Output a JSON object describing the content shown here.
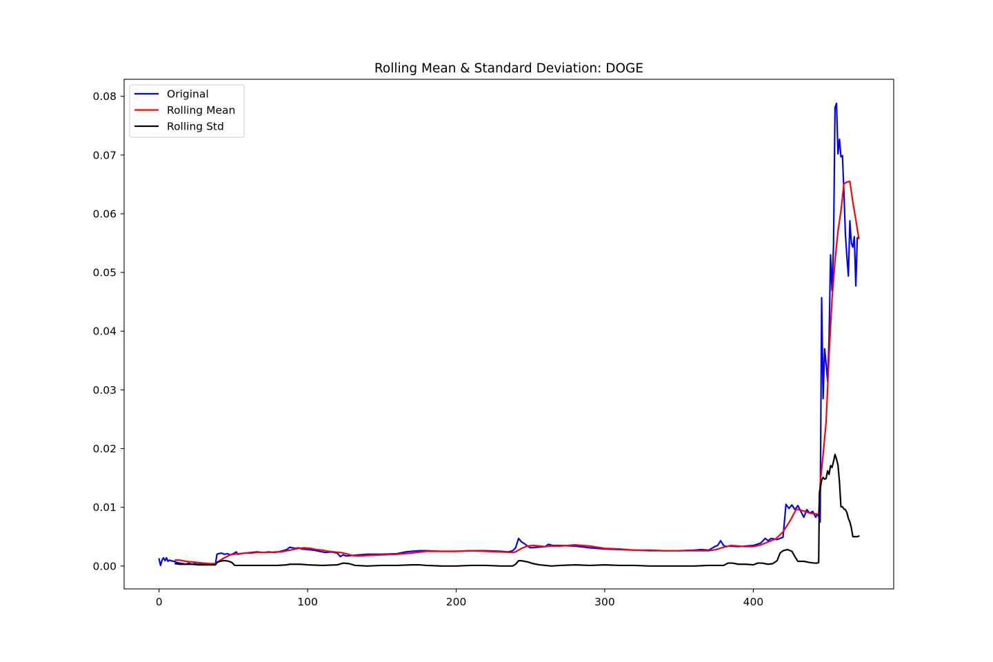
{
  "chart_data": {
    "type": "line",
    "title": "Rolling Mean & Standard Deviation:  DOGE",
    "xlabel": "",
    "ylabel": "",
    "xlim": [
      -23.5,
      494.5
    ],
    "ylim": [
      -0.0039,
      0.0829
    ],
    "xticks": [
      0,
      100,
      200,
      300,
      400
    ],
    "yticks": [
      0.0,
      0.01,
      0.02,
      0.03,
      0.04,
      0.05,
      0.06,
      0.07,
      0.08
    ],
    "ytick_labels": [
      "0.00",
      "0.01",
      "0.02",
      "0.03",
      "0.04",
      "0.05",
      "0.06",
      "0.07",
      "0.08"
    ],
    "grid": false,
    "legend_position": "upper-left",
    "series": [
      {
        "name": "Original",
        "color": "#0000ff",
        "x": [
          0,
          1,
          2,
          3,
          4,
          5,
          6,
          7,
          8,
          10,
          12,
          14,
          16,
          18,
          20,
          22,
          24,
          26,
          28,
          30,
          32,
          34,
          36,
          38,
          39,
          40,
          42,
          44,
          46,
          48,
          50,
          52,
          53,
          55,
          58,
          62,
          66,
          70,
          74,
          78,
          82,
          86,
          88,
          90,
          92,
          94,
          96,
          100,
          104,
          108,
          112,
          116,
          120,
          122,
          124,
          126,
          130,
          135,
          140,
          150,
          160,
          166,
          170,
          175,
          180,
          190,
          200,
          210,
          220,
          230,
          235,
          238,
          240,
          242,
          244,
          246,
          248,
          250,
          255,
          260,
          262,
          265,
          270,
          280,
          290,
          300,
          310,
          320,
          330,
          340,
          350,
          360,
          365,
          370,
          374,
          376,
          378,
          380,
          382,
          384,
          390,
          400,
          405,
          408,
          410,
          412,
          414,
          416,
          418,
          420,
          422,
          424,
          426,
          428,
          430,
          432,
          434,
          436,
          438,
          440,
          442,
          443,
          444,
          445,
          446,
          447,
          448,
          449,
          450,
          451,
          452,
          453,
          454,
          455,
          456,
          457,
          458,
          459,
          460,
          461,
          462,
          463,
          464,
          465,
          466,
          467,
          468,
          469,
          470,
          471
        ],
        "values": [
          0.0012,
          0.0001,
          0.001,
          0.0014,
          0.0009,
          0.0014,
          0.0008,
          0.001,
          0.0009,
          0.0008,
          0.0006,
          0.0005,
          0.0004,
          0.0003,
          0.0005,
          0.0003,
          0.0004,
          0.0003,
          0.0003,
          0.0004,
          0.0003,
          0.0004,
          0.0002,
          0.0004,
          0.002,
          0.0021,
          0.0022,
          0.002,
          0.0021,
          0.0019,
          0.0021,
          0.0024,
          0.002,
          0.0021,
          0.0022,
          0.0023,
          0.0024,
          0.0023,
          0.0024,
          0.0023,
          0.0025,
          0.0028,
          0.0032,
          0.0031,
          0.003,
          0.0031,
          0.0029,
          0.0028,
          0.0027,
          0.0025,
          0.0023,
          0.0024,
          0.0022,
          0.0016,
          0.0019,
          0.0017,
          0.0018,
          0.0019,
          0.002,
          0.002,
          0.0021,
          0.0024,
          0.0025,
          0.0026,
          0.0026,
          0.0025,
          0.0025,
          0.0026,
          0.0026,
          0.0025,
          0.0024,
          0.0026,
          0.0031,
          0.0047,
          0.0041,
          0.0038,
          0.0034,
          0.0031,
          0.0032,
          0.0033,
          0.0037,
          0.0035,
          0.0035,
          0.0034,
          0.0031,
          0.0029,
          0.0028,
          0.0027,
          0.0027,
          0.0026,
          0.0026,
          0.0027,
          0.0028,
          0.0027,
          0.0033,
          0.0035,
          0.0043,
          0.0035,
          0.0033,
          0.0034,
          0.0033,
          0.0035,
          0.0039,
          0.0047,
          0.0043,
          0.0047,
          0.0046,
          0.0045,
          0.0047,
          0.0049,
          0.0105,
          0.0098,
          0.0104,
          0.0096,
          0.0103,
          0.0093,
          0.0083,
          0.0096,
          0.009,
          0.0093,
          0.0083,
          0.0088,
          0.0085,
          0.0075,
          0.0457,
          0.0285,
          0.037,
          0.0345,
          0.0315,
          0.0387,
          0.053,
          0.0469,
          0.0547,
          0.0781,
          0.0788,
          0.0702,
          0.0727,
          0.0697,
          0.0699,
          0.0637,
          0.0565,
          0.0526,
          0.0494,
          0.0588,
          0.055,
          0.0543,
          0.0561,
          0.0477,
          0.0559,
          0.0559
        ],
        "note_bind": "legend.original"
      },
      {
        "name": "Rolling Mean",
        "color": "#ff0000",
        "x": [
          11,
          14,
          18,
          22,
          26,
          30,
          34,
          38,
          40,
          44,
          48,
          50,
          54,
          58,
          62,
          66,
          70,
          74,
          78,
          82,
          86,
          90,
          94,
          98,
          102,
          106,
          110,
          114,
          118,
          122,
          126,
          130,
          134,
          140,
          150,
          160,
          170,
          180,
          190,
          200,
          210,
          220,
          230,
          238,
          240,
          244,
          248,
          252,
          256,
          260,
          264,
          270,
          280,
          290,
          300,
          310,
          320,
          330,
          340,
          350,
          360,
          370,
          375,
          380,
          385,
          390,
          395,
          400,
          405,
          410,
          415,
          420,
          425,
          429,
          432,
          435,
          438,
          441,
          444,
          445,
          447,
          449,
          451,
          453,
          455,
          457,
          459,
          461,
          463,
          465,
          467,
          469,
          471
        ],
        "values": [
          0.001,
          0.001,
          0.0008,
          0.0007,
          0.0006,
          0.0005,
          0.0004,
          0.0004,
          0.0008,
          0.0014,
          0.0019,
          0.002,
          0.0021,
          0.0022,
          0.0022,
          0.0023,
          0.0023,
          0.0023,
          0.0024,
          0.0024,
          0.0026,
          0.0028,
          0.003,
          0.0031,
          0.003,
          0.0028,
          0.0027,
          0.0025,
          0.0024,
          0.0023,
          0.0021,
          0.0018,
          0.0017,
          0.0018,
          0.0019,
          0.002,
          0.0022,
          0.0025,
          0.0025,
          0.0025,
          0.0026,
          0.0025,
          0.0024,
          0.0023,
          0.0024,
          0.003,
          0.0034,
          0.0035,
          0.0034,
          0.0033,
          0.0034,
          0.0034,
          0.0036,
          0.0034,
          0.003,
          0.0029,
          0.0027,
          0.0026,
          0.0026,
          0.0026,
          0.0026,
          0.0026,
          0.0028,
          0.0032,
          0.0035,
          0.0034,
          0.0033,
          0.0033,
          0.0036,
          0.0041,
          0.0046,
          0.0058,
          0.0078,
          0.0097,
          0.0095,
          0.0093,
          0.009,
          0.0089,
          0.0088,
          0.014,
          0.019,
          0.0245,
          0.036,
          0.0455,
          0.052,
          0.057,
          0.0605,
          0.0651,
          0.0654,
          0.0655,
          0.062,
          0.059,
          0.0558
        ]
      },
      {
        "name": "Rolling Std",
        "color": "#000000",
        "x": [
          11,
          14,
          18,
          22,
          26,
          30,
          34,
          38,
          39,
          41,
          43,
          45,
          47,
          49,
          51,
          55,
          60,
          70,
          80,
          86,
          88,
          90,
          95,
          100,
          110,
          120,
          124,
          128,
          132,
          140,
          150,
          160,
          170,
          175,
          180,
          190,
          200,
          210,
          220,
          230,
          238,
          240,
          242,
          244,
          248,
          252,
          256,
          260,
          264,
          270,
          280,
          290,
          300,
          310,
          320,
          330,
          340,
          350,
          360,
          370,
          375,
          380,
          383,
          386,
          390,
          395,
          400,
          403,
          406,
          410,
          413,
          416,
          418,
          420,
          423,
          426,
          428,
          430,
          434,
          438,
          441,
          443,
          444,
          444.5,
          445,
          446,
          447,
          448,
          449,
          450,
          451,
          452,
          453,
          454,
          455,
          456,
          457,
          458,
          459,
          460,
          461,
          462,
          463,
          464,
          465,
          466,
          467,
          468,
          469,
          470,
          471
        ],
        "values": [
          0.0004,
          0.0003,
          0.0003,
          0.0003,
          0.0002,
          0.0002,
          0.0002,
          0.0002,
          0.0006,
          0.0008,
          0.0009,
          0.0009,
          0.0008,
          0.0006,
          0.0001,
          0.0001,
          0.0001,
          0.0001,
          0.0001,
          0.0002,
          0.0003,
          0.0003,
          0.0003,
          0.0002,
          0.0001,
          0.0002,
          0.0005,
          0.0004,
          0.0001,
          0.0,
          0.0001,
          0.0001,
          0.0002,
          0.0002,
          0.0001,
          0.0,
          0.0,
          0.0001,
          0.0001,
          0.0,
          0.0,
          0.0003,
          0.0009,
          0.0009,
          0.0007,
          0.0004,
          0.0002,
          0.0001,
          0.0,
          0.0001,
          0.0002,
          0.0001,
          0.0002,
          0.0001,
          0.0001,
          0.0,
          0.0,
          0.0,
          0.0,
          0.0001,
          0.0001,
          0.0001,
          0.0005,
          0.0005,
          0.0003,
          0.0003,
          0.0002,
          0.0005,
          0.0005,
          0.0003,
          0.0004,
          0.0009,
          0.0022,
          0.0026,
          0.0028,
          0.0025,
          0.0016,
          0.0008,
          0.0008,
          0.0006,
          0.0005,
          0.0005,
          0.0006,
          0.0125,
          0.0131,
          0.0146,
          0.0151,
          0.0148,
          0.0149,
          0.0162,
          0.0156,
          0.0171,
          0.0168,
          0.0178,
          0.019,
          0.0182,
          0.0172,
          0.0143,
          0.0101,
          0.0101,
          0.0097,
          0.0096,
          0.0091,
          0.0081,
          0.0075,
          0.0065,
          0.005,
          0.005,
          0.005,
          0.005,
          0.0051
        ]
      }
    ]
  }
}
